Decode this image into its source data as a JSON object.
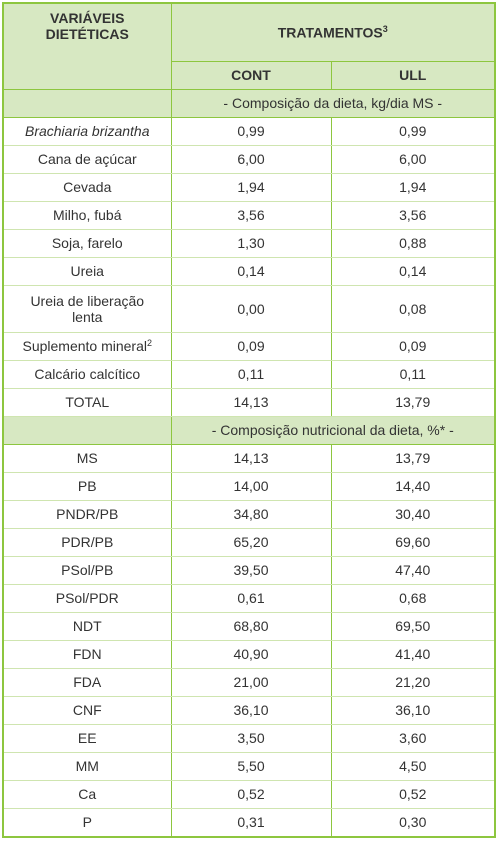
{
  "header": {
    "variables": "VARIÁVEIS DIETÉTICAS",
    "treatments": "TRATAMENTOS",
    "treatments_note": "3",
    "columns": [
      "CONT",
      "ULL"
    ]
  },
  "sections": [
    {
      "title": "- Composição da dieta, kg/dia MS -",
      "rows": [
        {
          "label": "Brachiaria brizantha",
          "values": [
            "0,99",
            "0,99"
          ]
        },
        {
          "label": "Cana de açúcar",
          "values": [
            "6,00",
            "6,00"
          ]
        },
        {
          "label": "Cevada",
          "values": [
            "1,94",
            "1,94"
          ]
        },
        {
          "label": "Milho, fubá",
          "values": [
            "3,56",
            "3,56"
          ]
        },
        {
          "label": "Soja, farelo",
          "values": [
            "1,30",
            "0,88"
          ]
        },
        {
          "label": "Ureia",
          "values": [
            "0,14",
            "0,14"
          ]
        },
        {
          "label": "Ureia de liberação lenta",
          "values": [
            "0,00",
            "0,08"
          ]
        },
        {
          "label": "Suplemento mineral",
          "note": "2",
          "values": [
            "0,09",
            "0,09"
          ]
        },
        {
          "label": "Calcário calcítico",
          "values": [
            "0,11",
            "0,11"
          ]
        },
        {
          "label": "TOTAL",
          "values": [
            "14,13",
            "13,79"
          ]
        }
      ]
    },
    {
      "title": "- Composição nutricional da dieta, %* -",
      "rows": [
        {
          "label": "MS",
          "values": [
            "14,13",
            "13,79"
          ]
        },
        {
          "label": "PB",
          "values": [
            "14,00",
            "14,40"
          ]
        },
        {
          "label": "PNDR/PB",
          "values": [
            "34,80",
            "30,40"
          ]
        },
        {
          "label": "PDR/PB",
          "values": [
            "65,20",
            "69,60"
          ]
        },
        {
          "label": "PSol/PB",
          "values": [
            "39,50",
            "47,40"
          ]
        },
        {
          "label": "PSol/PDR",
          "values": [
            "0,61",
            "0,68"
          ]
        },
        {
          "label": "NDT",
          "values": [
            "68,80",
            "69,50"
          ]
        },
        {
          "label": "FDN",
          "values": [
            "40,90",
            "41,40"
          ]
        },
        {
          "label": "FDA",
          "values": [
            "21,00",
            "21,20"
          ]
        },
        {
          "label": "CNF",
          "values": [
            "36,10",
            "36,10"
          ]
        },
        {
          "label": "EE",
          "values": [
            "3,50",
            "3,60"
          ]
        },
        {
          "label": "MM",
          "values": [
            "5,50",
            "4,50"
          ]
        },
        {
          "label": "Ca",
          "values": [
            "0,52",
            "0,52"
          ]
        },
        {
          "label": "P",
          "values": [
            "0,31",
            "0,30"
          ]
        }
      ]
    }
  ]
}
